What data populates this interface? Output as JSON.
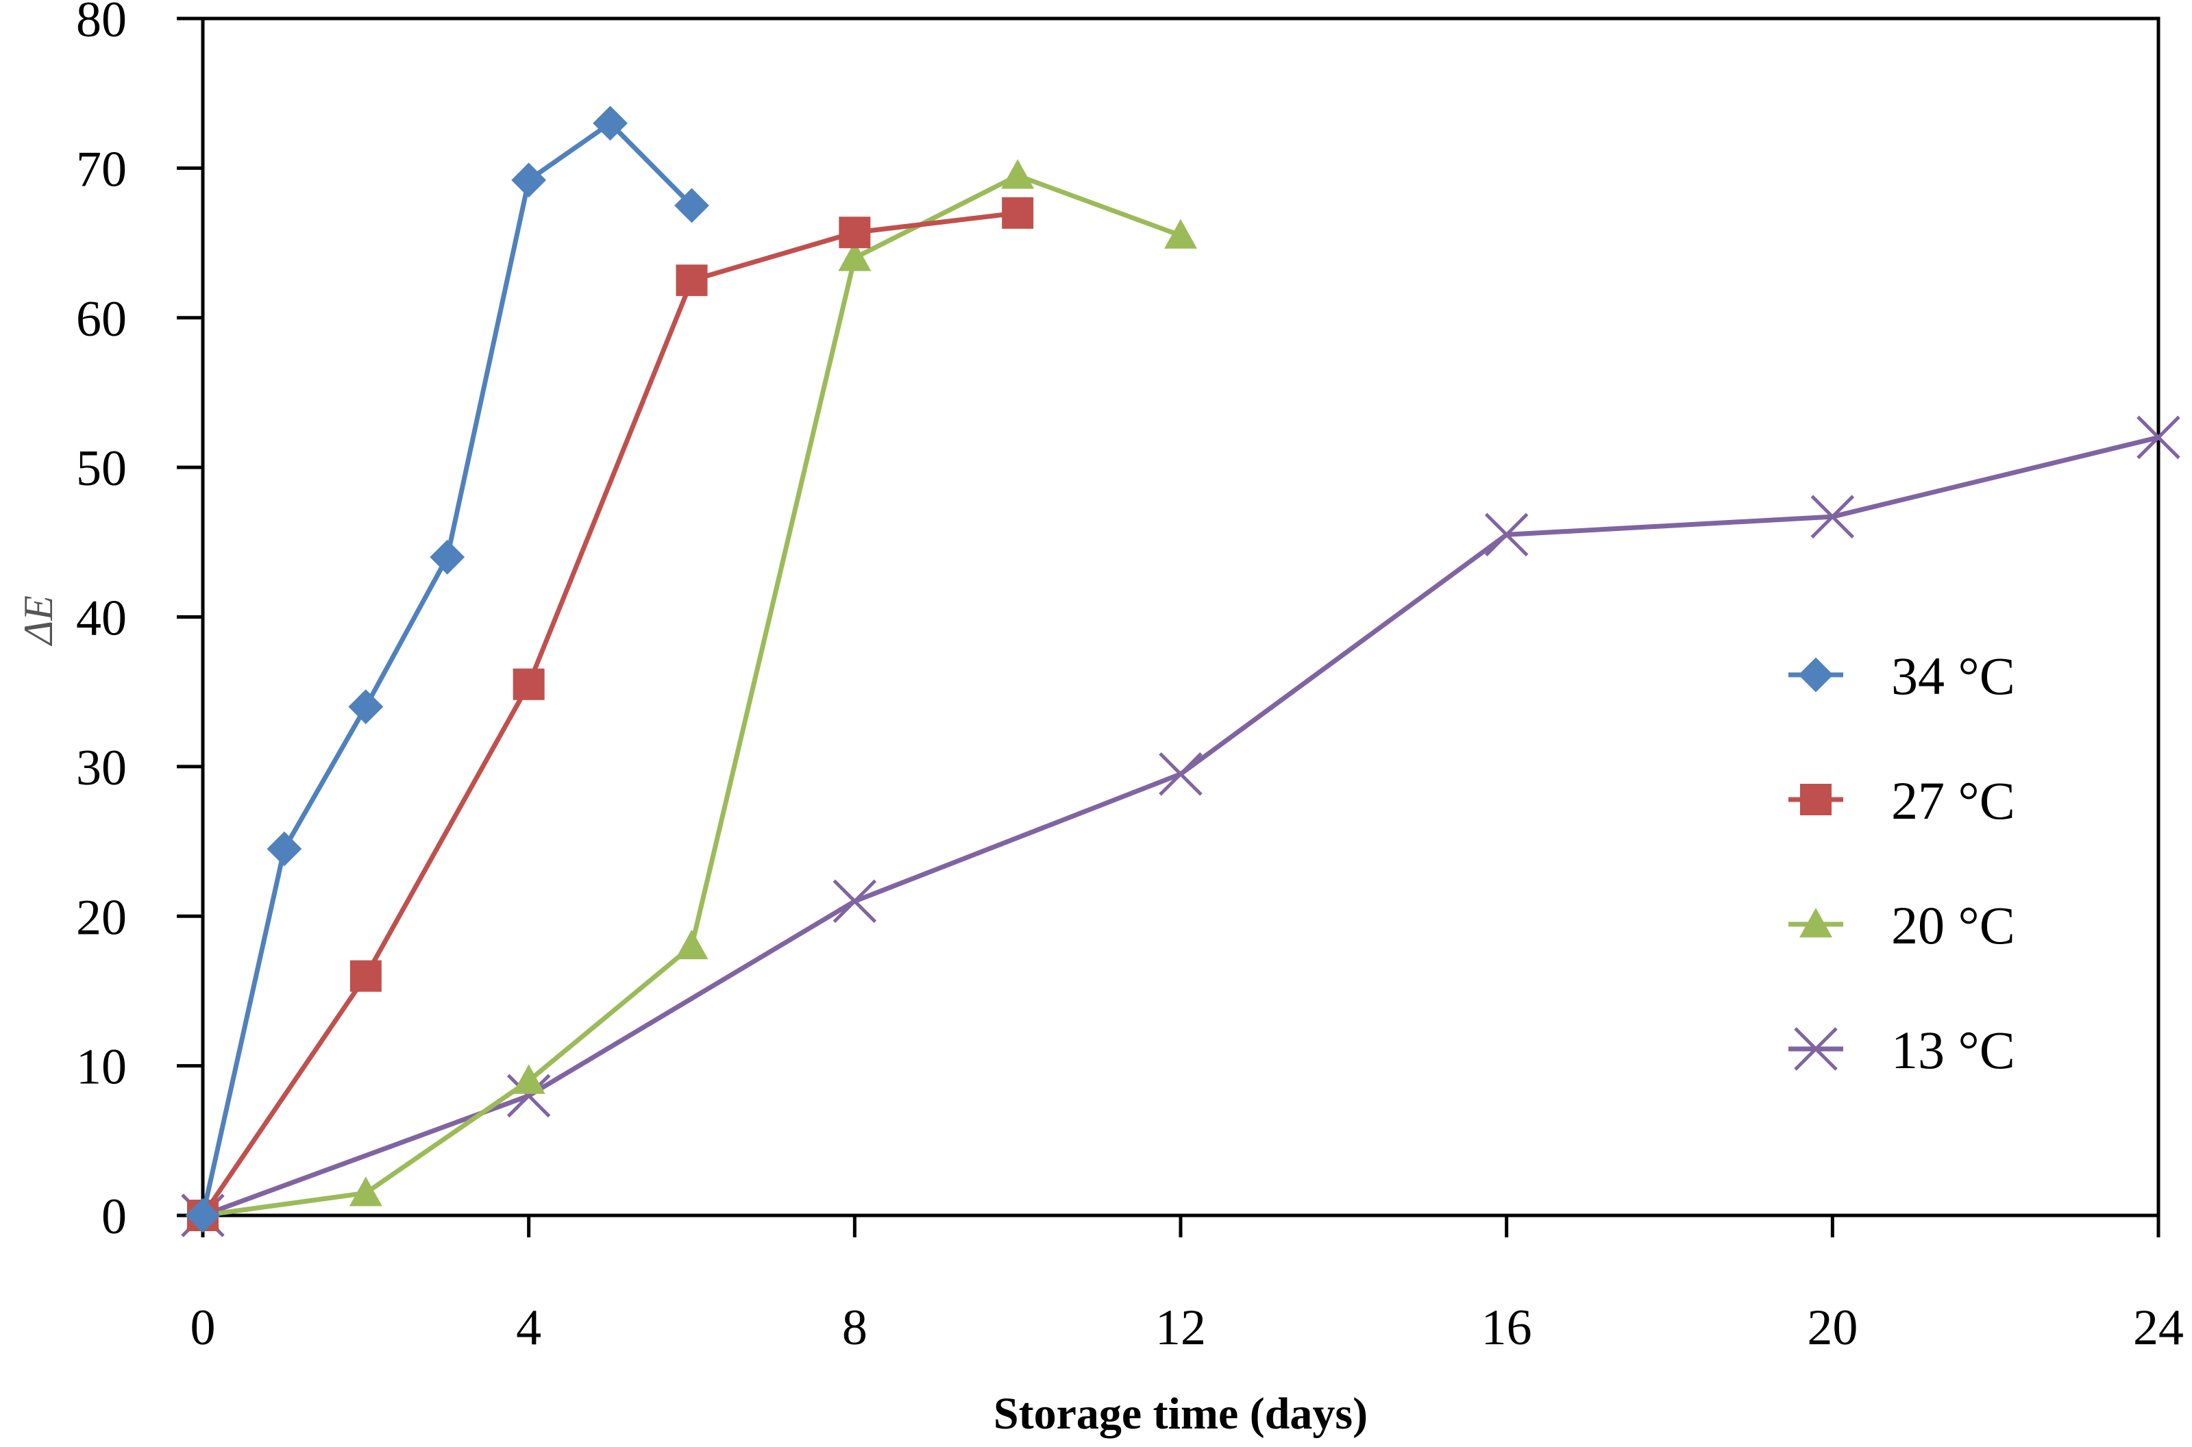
{
  "chart_data": {
    "type": "line",
    "title": "",
    "xlabel": "Storage time (days)",
    "ylabel": "ΔE",
    "xlim": [
      0,
      24
    ],
    "ylim": [
      0,
      80
    ],
    "xticks": [
      0,
      4,
      8,
      12,
      16,
      20,
      24
    ],
    "yticks": [
      0,
      10,
      20,
      30,
      40,
      50,
      60,
      70,
      80
    ],
    "grid": false,
    "legend_position": "right",
    "series": [
      {
        "name": "34 °C",
        "color": "#4f81bd",
        "marker": "diamond",
        "x": [
          0,
          1,
          2,
          3,
          4,
          5,
          6
        ],
        "y": [
          0,
          24.5,
          34,
          44,
          69.2,
          73,
          67.5
        ]
      },
      {
        "name": "27 °C",
        "color": "#c0504d",
        "marker": "square",
        "x": [
          0,
          2,
          4,
          6,
          8,
          10
        ],
        "y": [
          0,
          16,
          35.5,
          62.5,
          65.7,
          67
        ]
      },
      {
        "name": "20 °C",
        "color": "#9bbb59",
        "marker": "triangle",
        "x": [
          0,
          2,
          4,
          6,
          8,
          10,
          12
        ],
        "y": [
          0,
          1.5,
          9,
          18,
          64,
          69.5,
          65.5
        ]
      },
      {
        "name": "13 °C",
        "color": "#8064a2",
        "marker": "x",
        "x": [
          0,
          4,
          8,
          12,
          16,
          20,
          24
        ],
        "y": [
          0,
          8,
          21,
          29.5,
          45.5,
          46.7,
          52
        ]
      }
    ]
  }
}
